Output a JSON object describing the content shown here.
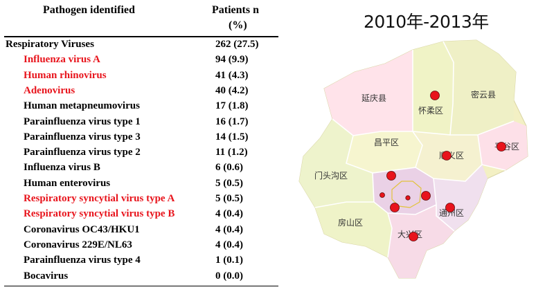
{
  "table": {
    "header": {
      "pathogen": "Pathogen identified",
      "patients_line1": "Patients n",
      "patients_line2": "(%)"
    },
    "rows": [
      {
        "label": "Respiratory Viruses",
        "value": "262 (27.5)",
        "level": "group",
        "color": "#000000"
      },
      {
        "label": "Influenza virus A",
        "value": "94 (9.9)",
        "level": "item",
        "color": "#e8141c"
      },
      {
        "label": "Human rhinovirus",
        "value": "41 (4.3)",
        "level": "item",
        "color": "#e8141c"
      },
      {
        "label": "Adenovirus",
        "value": "40 (4.2)",
        "level": "item",
        "color": "#e8141c"
      },
      {
        "label": "Human metapneumovirus",
        "value": "17 (1.8)",
        "level": "item",
        "color": "#000000"
      },
      {
        "label": "Parainfluenza virus type 1",
        "value": "16 (1.7)",
        "level": "item",
        "color": "#000000"
      },
      {
        "label": "Parainfluenza virus type 3",
        "value": "14 (1.5)",
        "level": "item",
        "color": "#000000"
      },
      {
        "label": "Parainfluenza virus type 2",
        "value": "11 (1.2)",
        "level": "item",
        "color": "#000000"
      },
      {
        "label": "Influenza virus B",
        "value": "6 (0.6)",
        "level": "item",
        "color": "#000000"
      },
      {
        "label": "Human enterovirus",
        "value": "5 (0.5)",
        "level": "item",
        "color": "#000000"
      },
      {
        "label": "Respiratory syncytial virus type A",
        "value": "5 (0.5)",
        "level": "item",
        "color": "#e8141c"
      },
      {
        "label": "Respiratory syncytial virus type B",
        "value": "4 (0.4)",
        "level": "item",
        "color": "#e8141c"
      },
      {
        "label": "Coronavirus OC43/HKU1",
        "value": "4 (0.4)",
        "level": "item",
        "color": "#000000"
      },
      {
        "label": "Coronavirus 229E/NL63",
        "value": "4 (0.4)",
        "level": "item",
        "color": "#000000"
      },
      {
        "label": "Parainfluenza virus type 4",
        "value": "1 (0.1)",
        "level": "item",
        "color": "#000000"
      },
      {
        "label": "Bocavirus",
        "value": "0 (0.0)",
        "level": "item",
        "color": "#000000"
      }
    ]
  },
  "map": {
    "title": "2010年-2013年",
    "districts": {
      "yanqing": "延庆县",
      "huairou": "怀柔区",
      "miyun": "密云县",
      "changping": "昌平区",
      "shunyi": "顺义区",
      "pinggu": "平谷区",
      "mentougou": "门头沟区",
      "tongzhou": "通州区",
      "fangshan": "房山区",
      "daxing": "大兴区"
    },
    "marker_color": "#e8141c"
  }
}
